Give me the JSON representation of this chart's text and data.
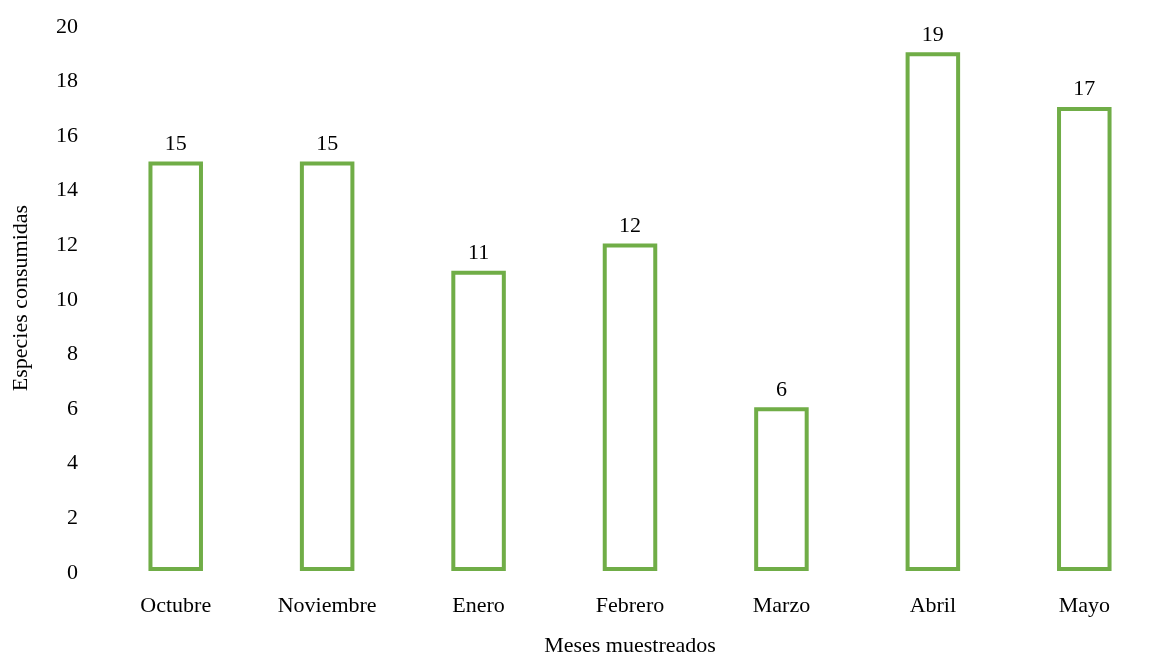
{
  "chart_data": {
    "type": "bar",
    "xlabel": "Meses muestreados",
    "ylabel": "Especies consumidas",
    "categories": [
      "Octubre",
      "Noviembre",
      "Enero",
      "Febrero",
      "Marzo",
      "Abril",
      "Mayo"
    ],
    "values": [
      15,
      15,
      11,
      12,
      6,
      19,
      17
    ],
    "color": "#70ad47",
    "ylim": [
      0,
      20
    ],
    "yticks": [
      0,
      2,
      4,
      6,
      8,
      10,
      12,
      14,
      16,
      18,
      20
    ],
    "grid": false,
    "data_labels": true
  }
}
